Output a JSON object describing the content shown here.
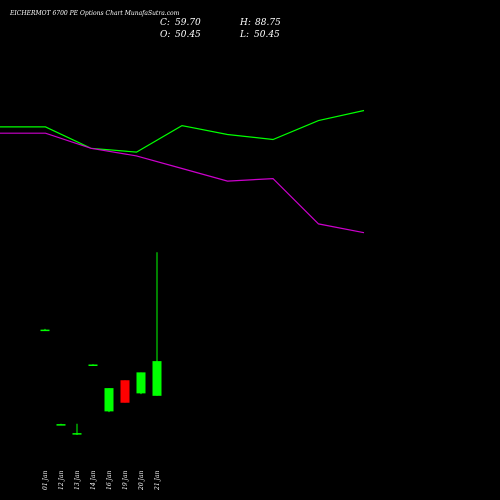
{
  "chart_data": {
    "type": "candlestick",
    "title": "EICHERMOT 6700  PE Options  Chart MunafaSutra.com",
    "ohlc_header": {
      "close_label": "C:",
      "close": "59.70",
      "high_label": "H:",
      "high": "88.75",
      "open_label": "O:",
      "open": "50.45",
      "low_label": "L:",
      "low": "50.45"
    },
    "categories": [
      "01 Jan",
      "12 Jan",
      "13 Jan",
      "14 Jan",
      "16 Jan",
      "19 Jan",
      "20 Jan",
      "21 Jan"
    ],
    "candles": [
      {
        "date": "01 Jan",
        "open": 68.0,
        "high": 68.3,
        "low": 67.8,
        "close": 68.1,
        "color": "green"
      },
      {
        "date": "12 Jan",
        "open": 42.8,
        "high": 43.0,
        "low": 42.6,
        "close": 42.9,
        "color": "green"
      },
      {
        "date": "13 Jan",
        "open": 40.3,
        "high": 43.0,
        "low": 40.0,
        "close": 40.5,
        "color": "green"
      },
      {
        "date": "14 Jan",
        "open": 58.7,
        "high": 58.9,
        "low": 58.5,
        "close": 58.8,
        "color": "green"
      },
      {
        "date": "16 Jan",
        "open": 46.3,
        "high": 52.5,
        "low": 46.1,
        "close": 52.5,
        "color": "green"
      },
      {
        "date": "19 Jan",
        "open": 54.6,
        "high": 54.6,
        "low": 48.6,
        "close": 48.6,
        "color": "red"
      },
      {
        "date": "20 Jan",
        "open": 51.1,
        "high": 56.7,
        "low": 50.9,
        "close": 56.7,
        "color": "green"
      },
      {
        "date": "21 Jan",
        "open": 50.45,
        "high": 88.75,
        "low": 50.45,
        "close": 59.7,
        "color": "green"
      }
    ],
    "price_axis": {
      "min": 20,
      "max": 100
    },
    "indicator_lines": [
      {
        "color": "#00ff00",
        "values": [
          85,
          85,
          68,
          65,
          86,
          79,
          75,
          90,
          98
        ]
      },
      {
        "color": "#cc00cc",
        "values": [
          80,
          80,
          68,
          62,
          52,
          42,
          44,
          8,
          1
        ]
      }
    ],
    "indicator_axis": {
      "min": 0,
      "max": 100
    },
    "colors": {
      "background": "#000000",
      "up": "#00ff00",
      "down": "#ff0000",
      "text": "#ffffff"
    }
  }
}
